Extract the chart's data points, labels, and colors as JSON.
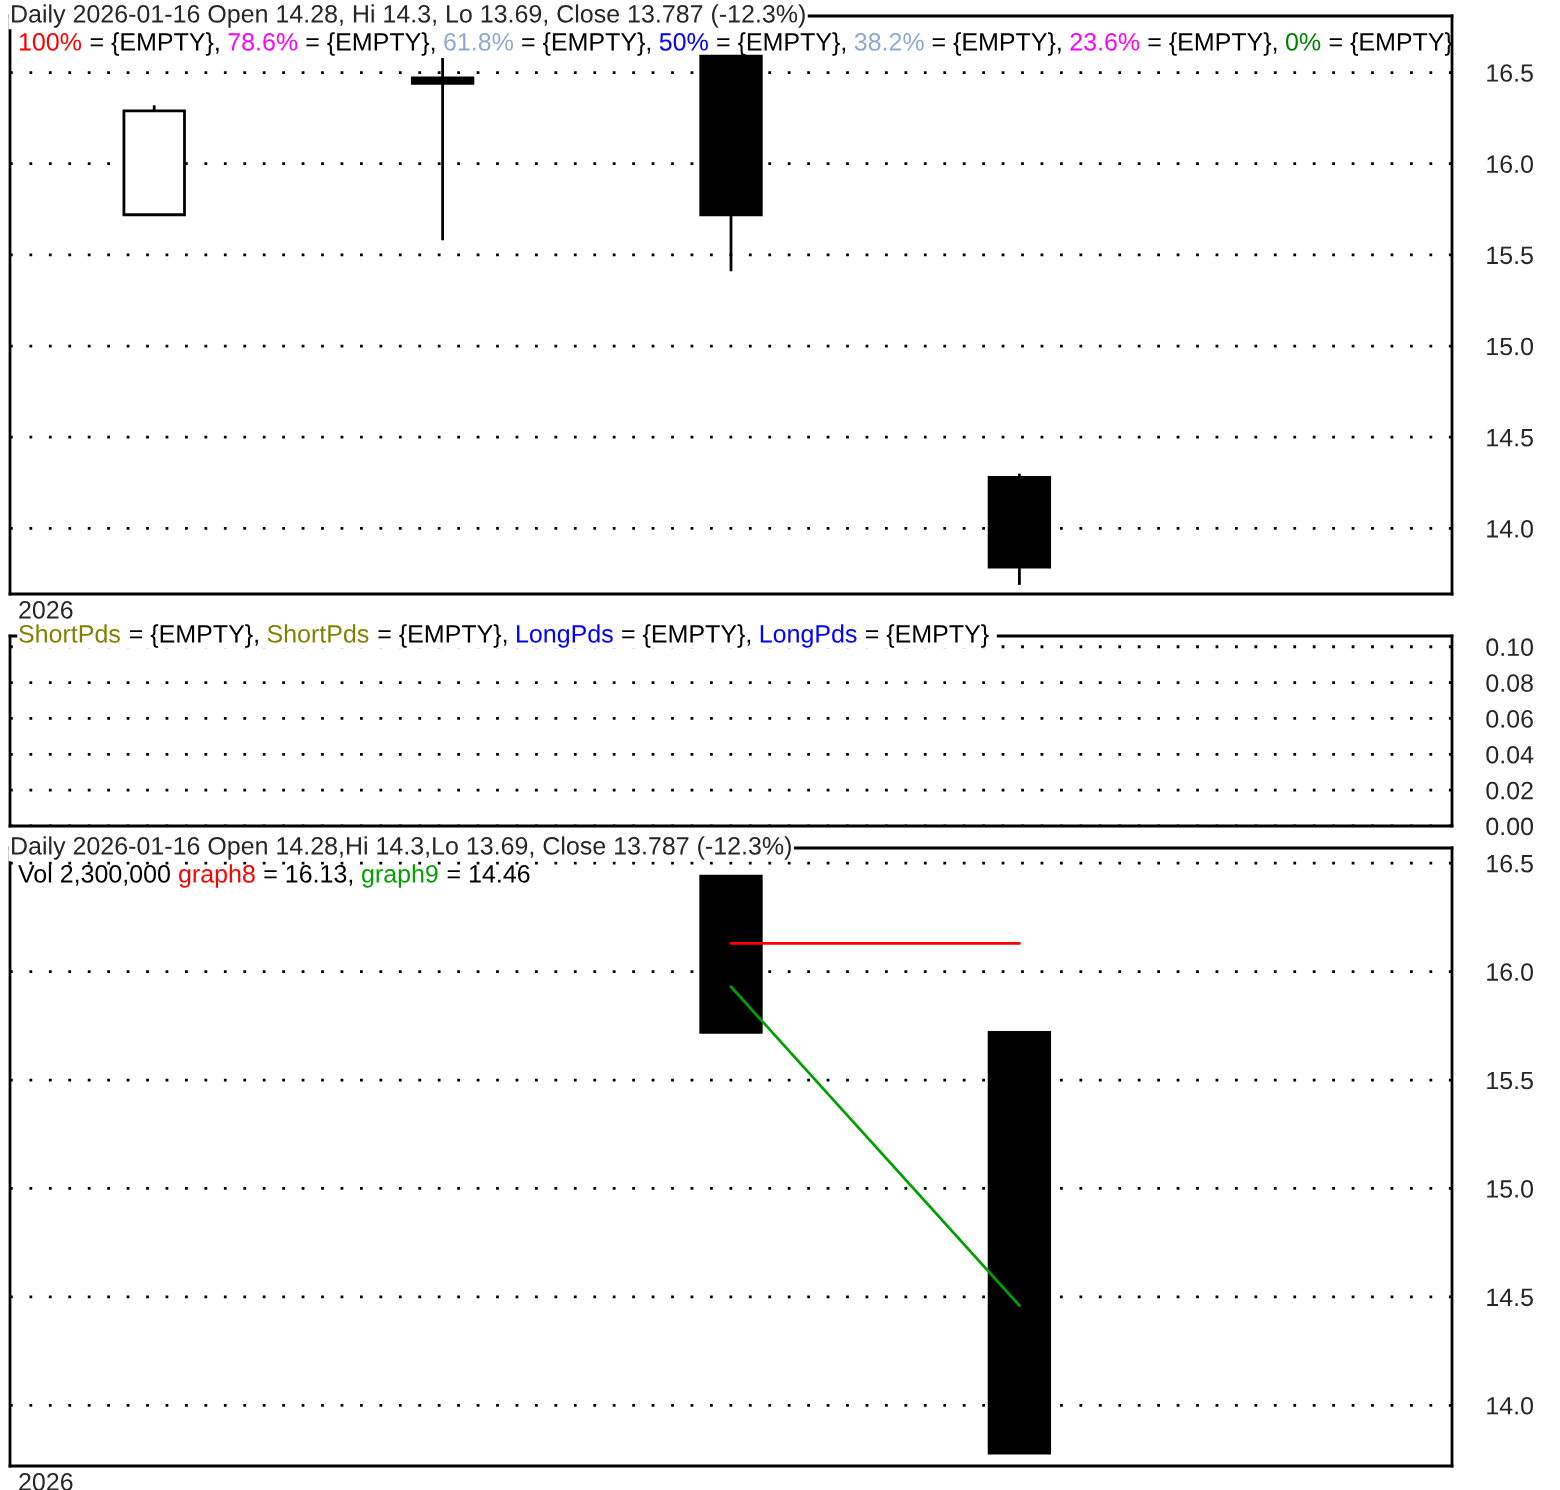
{
  "chart_data": [
    {
      "type": "candlestick",
      "title": "Daily 2026-01-16 Open 14.28, Hi 14.3, Lo 13.69, Close 13.787 (-12.3%)",
      "categories": [
        null,
        null,
        null,
        null,
        null
      ],
      "ohlc": [
        [
          15.72,
          16.32,
          15.72,
          16.29
        ],
        [
          16.47,
          16.58,
          15.58,
          16.44
        ],
        [
          16.59,
          16.59,
          15.41,
          15.72
        ],
        [
          14.28,
          14.3,
          13.69,
          13.787
        ],
        null
      ],
      "ylim": [
        13.64,
        16.81
      ],
      "yticks": [
        {
          "value": 14,
          "label": "14.0"
        },
        {
          "value": 14.5,
          "label": "14.5"
        },
        {
          "value": 15,
          "label": "15.0"
        },
        {
          "value": 15.5,
          "label": "15.5"
        },
        {
          "value": 16,
          "label": "16.0"
        },
        {
          "value": 16.5,
          "label": "16.5"
        }
      ],
      "grid": "y",
      "series": [
        {
          "name": "100%",
          "color": "#ff0000",
          "values": [
            null,
            null,
            null,
            null,
            null
          ]
        },
        {
          "name": "78.6%",
          "color": "#ff00ff",
          "values": [
            null,
            null,
            null,
            null,
            null
          ]
        },
        {
          "name": "61.8%",
          "color": "#8fa8d0",
          "values": [
            null,
            null,
            null,
            null,
            null
          ]
        },
        {
          "name": "50%",
          "color": "#0000ff",
          "values": [
            null,
            null,
            null,
            null,
            null
          ]
        },
        {
          "name": "38.2%",
          "color": "#8fa8d0",
          "values": [
            null,
            null,
            null,
            null,
            null
          ]
        },
        {
          "name": "23.6%",
          "color": "#ff00ff",
          "values": [
            null,
            null,
            null,
            null,
            null
          ]
        },
        {
          "name": "0%",
          "color": "#008000",
          "values": [
            null,
            null,
            null,
            null,
            null
          ]
        }
      ],
      "annotations": [
        "= {EMPTY},",
        "= {EMPTY},",
        "= {EMPTY},",
        "= {EMPTY},",
        "= {EMPTY},",
        "= {EMPTY},",
        "= {EMPTY}",
        "2026"
      ]
    },
    {
      "type": "line",
      "categories": [
        null,
        null,
        null,
        null,
        null
      ],
      "ylim": [
        0,
        0.106
      ],
      "yticks": [
        {
          "value": 0,
          "label": "0.00"
        },
        {
          "value": 0.02,
          "label": "0.02"
        },
        {
          "value": 0.04,
          "label": "0.04"
        },
        {
          "value": 0.06,
          "label": "0.06"
        },
        {
          "value": 0.08,
          "label": "0.08"
        },
        {
          "value": 0.1,
          "label": "0.10"
        }
      ],
      "grid": "y",
      "tick_labels": "y",
      "series": [
        {
          "name": "ShortPds",
          "color": "#808000",
          "values": [
            null,
            null,
            null,
            null,
            null
          ]
        },
        {
          "name": "ShortPds",
          "color": "#808000",
          "values": [
            null,
            null,
            null,
            null,
            null
          ]
        },
        {
          "name": "LongPds",
          "color": "#0000ff",
          "values": [
            null,
            null,
            null,
            null,
            null
          ]
        },
        {
          "name": "LongPds",
          "color": "#0000ff",
          "values": [
            null,
            null,
            null,
            null,
            null
          ]
        }
      ],
      "annotations": [
        "= {EMPTY},",
        "= {EMPTY},",
        "= {EMPTY},",
        "= {EMPTY}"
      ]
    },
    {
      "type": "bar",
      "title": "Daily 2026-01-16 Open 14.28,Hi 14.3,Lo 13.69, Close 13.787 (-12.3%)",
      "categories": [
        null,
        null,
        null,
        null,
        null
      ],
      "values": [
        null,
        null,
        0.72,
        1.94,
        null
      ],
      "base": [
        null,
        null,
        15.72,
        13.78,
        null
      ],
      "color": "#000000",
      "ylim": [
        13.72,
        16.57
      ],
      "yticks": [
        {
          "value": 14,
          "label": "14.0"
        },
        {
          "value": 14.5,
          "label": "14.5"
        },
        {
          "value": 15,
          "label": "15.0"
        },
        {
          "value": 15.5,
          "label": "15.5"
        },
        {
          "value": 16,
          "label": "16.0"
        },
        {
          "value": 16.5,
          "label": "16.5"
        }
      ],
      "grid": "y",
      "series": [
        {
          "type": "line",
          "name": "graph8",
          "color": "#ff0000",
          "values": [
            null,
            null,
            16.13,
            16.13,
            null
          ]
        },
        {
          "type": "line",
          "name": "graph9",
          "color": "#00a000",
          "values": [
            null,
            null,
            15.93,
            14.46,
            null
          ]
        }
      ],
      "annotations": [
        "Vol 2,300,000",
        "= 16.13,",
        "= 14.46",
        "2026"
      ]
    }
  ]
}
